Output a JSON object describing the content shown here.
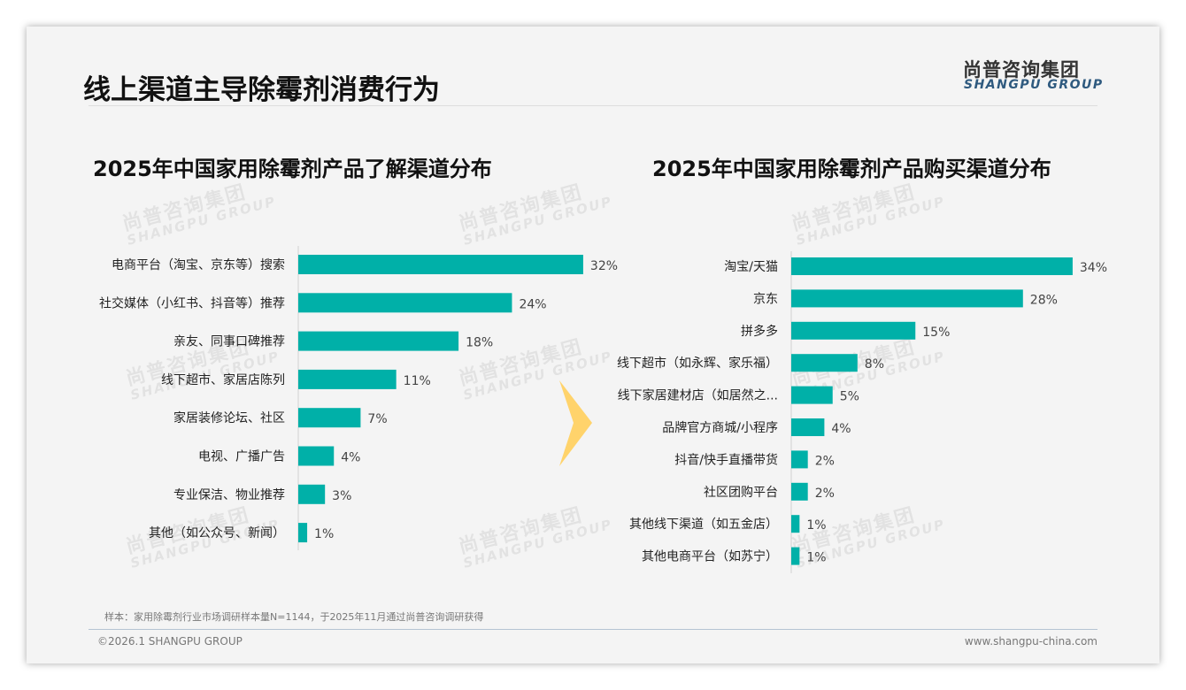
{
  "title": "线上渠道主导除霉剂消费行为",
  "logo": {
    "cn": "尚普咨询集团",
    "en": "SHANGPU GROUP"
  },
  "watermark": {
    "cn": "尚普咨询集团",
    "en": "SHANGPU GROUP"
  },
  "colors": {
    "bar": "#00B0A8",
    "arrow": "#FFD36B"
  },
  "chart_data": [
    {
      "type": "bar",
      "orientation": "horizontal",
      "title": "2025年中国家用除霉剂产品了解渠道分布",
      "categories": [
        "电商平台（淘宝、京东等）搜索",
        "社交媒体（小红书、抖音等）推荐",
        "亲友、同事口碑推荐",
        "线下超市、家居店陈列",
        "家居装修论坛、社区",
        "电视、广播广告",
        "专业保洁、物业推荐",
        "其他（如公众号、新闻）"
      ],
      "values": [
        32,
        24,
        18,
        11,
        7,
        4,
        3,
        1
      ],
      "labels": [
        "32%",
        "24%",
        "18%",
        "11%",
        "7%",
        "4%",
        "3%",
        "1%"
      ],
      "unit": "%"
    },
    {
      "type": "bar",
      "orientation": "horizontal",
      "title": "2025年中国家用除霉剂产品购买渠道分布",
      "categories": [
        "淘宝/天猫",
        "京东",
        "拼多多",
        "线下超市（如永辉、家乐福）",
        "线下家居建材店（如居然之...",
        "品牌官方商城/小程序",
        "抖音/快手直播带货",
        "社区团购平台",
        "其他线下渠道（如五金店）",
        "其他电商平台（如苏宁）"
      ],
      "values": [
        34,
        28,
        15,
        8,
        5,
        4,
        2,
        2,
        1,
        1
      ],
      "labels": [
        "34%",
        "28%",
        "15%",
        "8%",
        "5%",
        "4%",
        "2%",
        "2%",
        "1%",
        "1%"
      ],
      "unit": "%"
    }
  ],
  "footer": {
    "note": "样本：家用除霉剂行业市场调研样本量N=1144，于2025年11月通过尚普咨询调研获得",
    "copyright": "©2026.1 SHANGPU GROUP",
    "url": "www.shangpu-china.com"
  }
}
